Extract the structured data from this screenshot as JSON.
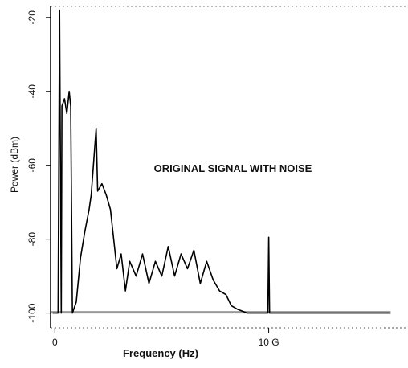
{
  "chart_data": {
    "type": "line",
    "annotation": "ORIGINAL SIGNAL WITH NOISE",
    "x_label": "Frequency (Hz)",
    "y_label": "Power (dBm)",
    "color": "#000000",
    "x": [
      -100000000,
      150000000,
      220000000,
      300000000,
      330000000,
      450000000,
      560000000,
      670000000,
      740000000,
      820000000,
      1000000000,
      1200000000,
      1400000000,
      1600000000,
      1700000000,
      1930000000,
      2000000000,
      2200000000,
      2400000000,
      2600000000,
      2750000000,
      2900000000,
      3100000000,
      3300000000,
      3500000000,
      3800000000,
      4100000000,
      4400000000,
      4700000000,
      5000000000,
      5300000000,
      5600000000,
      5900000000,
      6200000000,
      6500000000,
      6800000000,
      7100000000,
      7400000000,
      7700000000,
      8000000000,
      8250000000,
      8550000000,
      9000000000,
      9960000000,
      10000000000,
      10040000000,
      15700000000
    ],
    "values": [
      -100,
      -100,
      -18,
      -100,
      -44,
      -42,
      -46,
      -40,
      -44,
      -100,
      -97,
      -85,
      -78,
      -72,
      -68,
      -50,
      -67,
      -65,
      -68,
      -72,
      -80,
      -88,
      -84,
      -94,
      -86,
      -90,
      -84,
      -92,
      -86,
      -90,
      -82,
      -90,
      -84,
      -88,
      -83,
      -92,
      -86,
      -91,
      -94,
      -95,
      -98,
      -99,
      -100,
      -100,
      -79.5,
      -100,
      -100
    ],
    "xlim": [
      -200000000,
      16400000000
    ],
    "xticks": [
      0,
      {
        "value": 10000000000,
        "label": "10 G"
      }
    ],
    "ylim": [
      -104,
      -17
    ],
    "yticks": [
      -20,
      -40,
      -60,
      -80,
      -100
    ]
  }
}
